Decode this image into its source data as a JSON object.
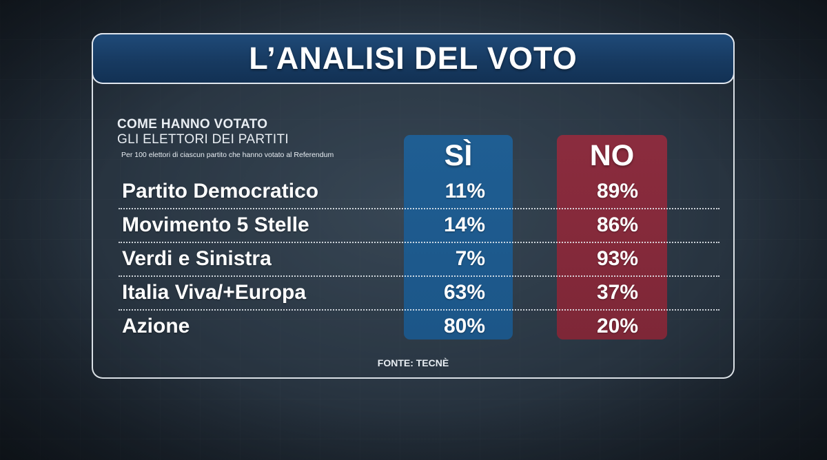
{
  "header": {
    "title": "L’ANALISI DEL VOTO",
    "subtitle_line1": "COME HANNO VOTATO",
    "subtitle_line2": "GLI ELETTORI DEI PARTITI",
    "note": "Per 100 elettori di ciascun partito che hanno votato al Referendum"
  },
  "colors": {
    "si": "#1f5e93",
    "no": "#8b2c3e",
    "title_bar": "#1a3e66"
  },
  "chart_data": {
    "type": "table",
    "title": "L’ANALISI DEL VOTO",
    "columns": [
      "SÌ",
      "NO"
    ],
    "rows": [
      {
        "party": "Partito Democratico",
        "si": 11,
        "no": 89,
        "si_label": "11%",
        "no_label": "89%"
      },
      {
        "party": "Movimento 5 Stelle",
        "si": 14,
        "no": 86,
        "si_label": "14%",
        "no_label": "86%"
      },
      {
        "party": "Verdi e Sinistra",
        "si": 7,
        "no": 93,
        "si_label": "7%",
        "no_label": "93%"
      },
      {
        "party": "Italia Viva/+Europa",
        "si": 63,
        "no": 37,
        "si_label": "63%",
        "no_label": "37%"
      },
      {
        "party": "Azione",
        "si": 80,
        "no": 20,
        "si_label": "80%",
        "no_label": "20%"
      }
    ],
    "source": "FONTE: TECNÈ"
  }
}
